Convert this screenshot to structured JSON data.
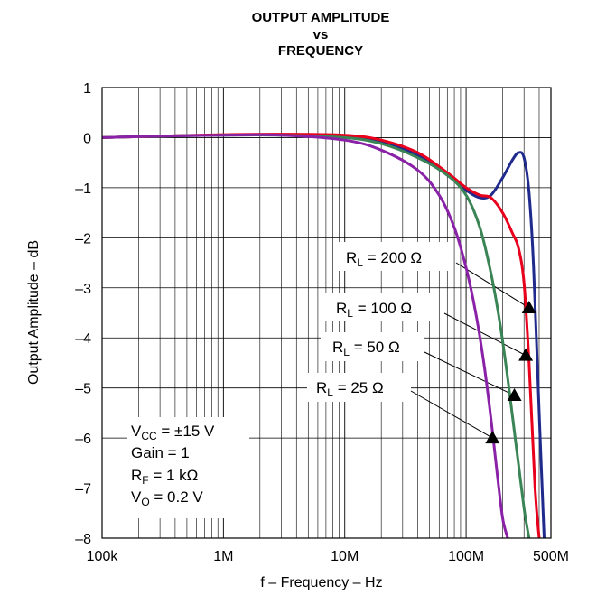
{
  "chart_data": {
    "type": "line",
    "title": [
      "OUTPUT AMPLITUDE",
      "vs",
      "FREQUENCY"
    ],
    "xlabel": "f – Frequency – Hz",
    "ylabel": "Output Amplitude – dB",
    "xscale": "log",
    "xlim": [
      100000,
      500000000
    ],
    "ylim": [
      -8,
      1
    ],
    "x_ticks": [
      {
        "value": 100000,
        "label": "100k"
      },
      {
        "value": 1000000,
        "label": "1M"
      },
      {
        "value": 10000000,
        "label": "10M"
      },
      {
        "value": 100000000,
        "label": "100M"
      },
      {
        "value": 500000000,
        "label": "500M"
      }
    ],
    "y_ticks": [
      {
        "value": 1,
        "label": "1"
      },
      {
        "value": 0,
        "label": "0"
      },
      {
        "value": -1,
        "label": "–1"
      },
      {
        "value": -2,
        "label": "–2"
      },
      {
        "value": -3,
        "label": "–3"
      },
      {
        "value": -4,
        "label": "–4"
      },
      {
        "value": -5,
        "label": "–5"
      },
      {
        "value": -6,
        "label": "–6"
      },
      {
        "value": -7,
        "label": "–7"
      },
      {
        "value": -8,
        "label": "–8"
      }
    ],
    "grid": true,
    "series": [
      {
        "name": "RL = 200 Ω",
        "label_main": "R",
        "label_sub": "L",
        "label_rest": " = 200 Ω",
        "color": "#1f2a8c",
        "x": [
          100000,
          300000,
          1000000,
          3000000,
          10000000,
          20000000,
          40000000,
          70000000,
          100000000,
          130000000,
          160000000,
          200000000,
          240000000,
          270000000,
          300000000,
          330000000,
          360000000,
          400000000,
          440000000
        ],
        "y": [
          0,
          0.03,
          0.05,
          0.05,
          0.02,
          -0.08,
          -0.35,
          -0.75,
          -1.05,
          -1.2,
          -1.15,
          -0.8,
          -0.45,
          -0.3,
          -0.4,
          -1.1,
          -2.6,
          -5.5,
          -8
        ]
      },
      {
        "name": "RL = 100 Ω",
        "label_main": "R",
        "label_sub": "L",
        "label_rest": " = 100 Ω",
        "color": "#e8001c",
        "x": [
          100000,
          300000,
          1000000,
          3000000,
          10000000,
          20000000,
          40000000,
          70000000,
          100000000,
          130000000,
          160000000,
          200000000,
          240000000,
          270000000,
          300000000,
          330000000,
          370000000,
          400000000
        ],
        "y": [
          0,
          0.03,
          0.06,
          0.07,
          0.05,
          -0.05,
          -0.3,
          -0.7,
          -1.0,
          -1.15,
          -1.2,
          -1.5,
          -1.9,
          -2.2,
          -2.9,
          -4.5,
          -7.0,
          -8
        ]
      },
      {
        "name": "RL = 50 Ω",
        "label_main": "R",
        "label_sub": "L",
        "label_rest": " = 50 Ω",
        "color": "#3a8456",
        "x": [
          100000,
          300000,
          1000000,
          3000000,
          10000000,
          20000000,
          40000000,
          70000000,
          100000000,
          130000000,
          160000000,
          190000000,
          220000000,
          260000000,
          300000000,
          330000000
        ],
        "y": [
          0,
          0.03,
          0.05,
          0.05,
          0.0,
          -0.12,
          -0.4,
          -0.75,
          -1.15,
          -1.8,
          -2.7,
          -3.7,
          -4.8,
          -6.2,
          -7.4,
          -8
        ]
      },
      {
        "name": "RL = 25 Ω",
        "label_main": "R",
        "label_sub": "L",
        "label_rest": " = 25 Ω",
        "color": "#8a22a8",
        "x": [
          100000,
          300000,
          1000000,
          3000000,
          10000000,
          20000000,
          40000000,
          60000000,
          80000000,
          100000000,
          120000000,
          140000000,
          160000000,
          180000000,
          200000000,
          220000000
        ],
        "y": [
          0,
          0.03,
          0.05,
          0.05,
          -0.05,
          -0.25,
          -0.65,
          -1.15,
          -1.8,
          -2.6,
          -3.5,
          -4.5,
          -5.6,
          -6.7,
          -7.6,
          -8
        ]
      }
    ],
    "annotations": {
      "labels": [
        {
          "main": "R",
          "sub": "L",
          "rest": " = 200 Ω"
        },
        {
          "main": "R",
          "sub": "L",
          "rest": " = 100 Ω"
        },
        {
          "main": "R",
          "sub": "L",
          "rest": " = 50 Ω"
        },
        {
          "main": "R",
          "sub": "L",
          "rest": " = 25 Ω"
        }
      ],
      "arrow_targets": [
        {
          "x": 330000000,
          "y": -3.4
        },
        {
          "x": 310000000,
          "y": -4.35
        },
        {
          "x": 250000000,
          "y": -5.15
        },
        {
          "x": 165000000,
          "y": -6.0
        }
      ],
      "conditions": [
        {
          "main": "V",
          "sub": "CC",
          "rest": " = ±15 V"
        },
        {
          "main": "Gain = 1",
          "sub": "",
          "rest": ""
        },
        {
          "main": "R",
          "sub": "F",
          "rest": " = 1 kΩ"
        },
        {
          "main": "V",
          "sub": "O",
          "rest": " = 0.2 V"
        }
      ]
    }
  }
}
